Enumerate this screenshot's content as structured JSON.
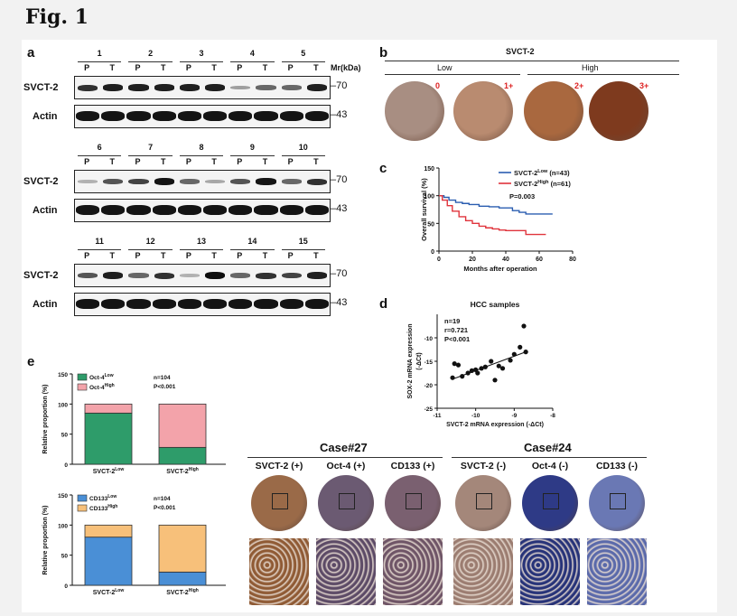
{
  "figure_title": "Fig. 1",
  "panel_a": {
    "letter": "a",
    "mr_label": "Mr(kDa)",
    "lane_labels": [
      "P",
      "T"
    ],
    "row_labels": [
      "SVCT-2",
      "Actin"
    ],
    "marker_top": "–70",
    "marker_bottom": "–43",
    "groups": [
      {
        "cases": [
          "1",
          "2",
          "3",
          "4",
          "5"
        ],
        "svct2": [
          0.8,
          0.9,
          0.9,
          0.9,
          0.9,
          0.9,
          0.2,
          0.5,
          0.5,
          0.9
        ]
      },
      {
        "cases": [
          "6",
          "7",
          "8",
          "9",
          "10"
        ],
        "svct2": [
          0.1,
          0.6,
          0.7,
          0.95,
          0.5,
          0.15,
          0.6,
          0.95,
          0.5,
          0.8
        ]
      },
      {
        "cases": [
          "11",
          "12",
          "13",
          "14",
          "15"
        ],
        "svct2": [
          0.6,
          0.9,
          0.5,
          0.8,
          0.1,
          1.0,
          0.5,
          0.8,
          0.7,
          0.9
        ]
      }
    ]
  },
  "panel_b": {
    "letter": "b",
    "header": "SVCT-2",
    "groups": [
      "Low",
      "High"
    ],
    "scores": [
      "0",
      "1+",
      "2+",
      "3+"
    ],
    "colors": [
      "#a88e82",
      "#b98b70",
      "#a9683f",
      "#7e3a1e"
    ]
  },
  "panel_c": {
    "letter": "c",
    "chart_data": {
      "type": "line",
      "xlabel": "Months after operation",
      "ylabel": "Overall survival (%)",
      "xlim": [
        0,
        80
      ],
      "ylim": [
        0,
        150
      ],
      "xticks": [
        "0",
        "20",
        "40",
        "60",
        "80"
      ],
      "yticks": [
        "0",
        "50",
        "100",
        "150"
      ],
      "legend_placement": "top-right",
      "p_value": "P=0.003",
      "series": [
        {
          "name": "SVCT-2 Low (n=43)",
          "color": "#2a5db0",
          "x": [
            0,
            3,
            6,
            10,
            14,
            18,
            24,
            30,
            36,
            44,
            48,
            52,
            56,
            60,
            68
          ],
          "y": [
            100,
            97,
            92,
            88,
            86,
            84,
            81,
            80,
            78,
            73,
            70,
            67,
            67,
            67,
            67
          ]
        },
        {
          "name": "SVCT-2 High (n=61)",
          "color": "#e0343c",
          "x": [
            0,
            2,
            5,
            8,
            12,
            16,
            20,
            24,
            28,
            32,
            36,
            40,
            48,
            52,
            58,
            64
          ],
          "y": [
            100,
            92,
            82,
            72,
            62,
            55,
            50,
            45,
            42,
            40,
            38,
            37,
            37,
            30,
            30,
            30
          ]
        }
      ]
    },
    "legend_low_name": "SVCT-2",
    "legend_low_sup": "Low",
    "legend_low_n": "(n=43)",
    "legend_high_name": "SVCT-2",
    "legend_high_sup": "High",
    "legend_high_n": "(n=61)"
  },
  "panel_d": {
    "letter": "d",
    "chart_data": {
      "type": "scatter",
      "title": "HCC samples",
      "xlabel": "SVCT-2 mRNA expression (-ΔCt)",
      "ylabel_line1": "SOX-2 mRNA expression",
      "ylabel_line2": "(-ΔCt)",
      "xlim": [
        -11,
        -8
      ],
      "ylim": [
        -25,
        -5
      ],
      "xticks": [
        "-11",
        "-10",
        "-9",
        "-8"
      ],
      "yticks": [
        "-10",
        "-15",
        "-20",
        "-25"
      ],
      "stats": [
        "n=19",
        "r=0.721",
        "P<0.001"
      ],
      "x": [
        -10.6,
        -10.55,
        -10.45,
        -10.35,
        -10.2,
        -10.1,
        -10.0,
        -9.95,
        -9.85,
        -9.75,
        -9.6,
        -9.5,
        -9.4,
        -9.3,
        -9.1,
        -9.0,
        -8.85,
        -8.75,
        -8.7
      ],
      "y": [
        -18.5,
        -15.5,
        -15.8,
        -18.2,
        -17.5,
        -17.0,
        -16.8,
        -17.5,
        -16.5,
        -16.2,
        -15.0,
        -19.0,
        -16.0,
        -16.5,
        -14.8,
        -13.5,
        -12.0,
        -7.5,
        -13.0
      ],
      "fit": {
        "x": [
          -10.6,
          -8.7
        ],
        "y": [
          -18.8,
          -13.0
        ]
      }
    }
  },
  "panel_e": {
    "letter": "e",
    "charts": [
      {
        "chart_data": {
          "type": "bar",
          "stacked": true,
          "ylabel": "Relative proportion (%)",
          "ylim": [
            0,
            150
          ],
          "yticks": [
            "0",
            "50",
            "100",
            "150"
          ],
          "categories_base": "SVCT-2",
          "categories_sup": [
            "Low",
            "High"
          ],
          "series": [
            {
              "name_base": "Oct-4",
              "name_sup": "Low",
              "color": "#2e9c6a",
              "values": [
                85,
                28
              ]
            },
            {
              "name_base": "Oct-4",
              "name_sup": "High",
              "color": "#f3a3aa",
              "values": [
                15,
                72
              ]
            }
          ],
          "stats": [
            "n=104",
            "P<0.001"
          ]
        }
      },
      {
        "chart_data": {
          "type": "bar",
          "stacked": true,
          "ylabel": "Relative proportion (%)",
          "ylim": [
            0,
            150
          ],
          "yticks": [
            "0",
            "50",
            "100",
            "150"
          ],
          "categories_base": "SVCT-2",
          "categories_sup": [
            "Low",
            "High"
          ],
          "series": [
            {
              "name_base": "CD133",
              "name_sup": "Low",
              "color": "#4a8fd6",
              "values": [
                80,
                22
              ]
            },
            {
              "name_base": "CD133",
              "name_sup": "High",
              "color": "#f7c07a",
              "values": [
                20,
                78
              ]
            }
          ],
          "stats": [
            "n=104",
            "P<0.001"
          ]
        }
      }
    ],
    "cases": [
      {
        "title": "Case#27",
        "labels": [
          "SVCT-2 (+)",
          "Oct-4 (+)",
          "CD133 (+)"
        ],
        "colors": [
          "#9a6a48",
          "#6b5a72",
          "#7a6070"
        ],
        "zoom_colors": [
          "#8f5a34",
          "#5c4a66",
          "#6e5466"
        ]
      },
      {
        "title": "Case#24",
        "labels": [
          "SVCT-2 (-)",
          "Oct-4 (-)",
          "CD133 (-)"
        ],
        "colors": [
          "#a4877a",
          "#2e3a86",
          "#6a78b4"
        ],
        "zoom_colors": [
          "#9b7c70",
          "#263278",
          "#5a69aa"
        ]
      }
    ]
  }
}
